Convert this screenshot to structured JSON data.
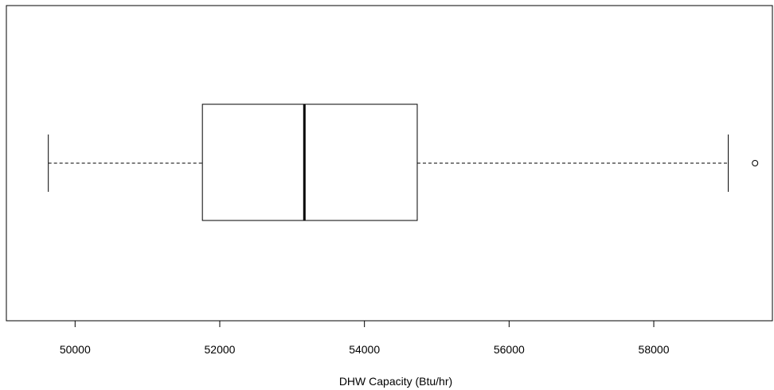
{
  "chart_data": {
    "type": "boxplot",
    "orientation": "horizontal",
    "title": "",
    "xlabel": "DHW Capacity (Btu/hr)",
    "ylabel": "",
    "xlim": [
      49050,
      59640
    ],
    "x_ticks": [
      50000,
      52000,
      54000,
      56000,
      58000
    ],
    "x_tick_labels": [
      "50000",
      "52000",
      "54000",
      "56000",
      "58000"
    ],
    "grid": false,
    "legend": "none",
    "box": {
      "whisker_low": 49630,
      "q1": 51760,
      "median": 53170,
      "q3": 54730,
      "whisker_high": 59030,
      "outliers": [
        59400
      ]
    },
    "colors": {
      "stroke": "#000000",
      "fill": "#ffffff"
    }
  }
}
